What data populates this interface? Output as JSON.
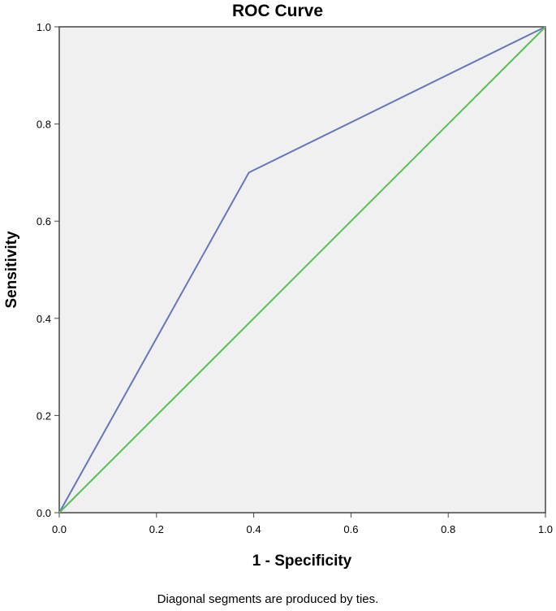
{
  "chart_data": {
    "type": "line",
    "title": "ROC Curve",
    "xlabel": "1 - Specificity",
    "ylabel": "Sensitivity",
    "xlim": [
      0,
      1
    ],
    "ylim": [
      0,
      1
    ],
    "xticks": [
      0.0,
      0.2,
      0.4,
      0.6,
      0.8,
      1.0
    ],
    "yticks": [
      0.0,
      0.2,
      0.4,
      0.6,
      0.8,
      1.0
    ],
    "xtick_labels": [
      "0.0",
      "0.2",
      "0.4",
      "0.6",
      "0.8",
      "1.0"
    ],
    "ytick_labels": [
      "0.0",
      "0.2",
      "0.4",
      "0.6",
      "0.8",
      "1.0"
    ],
    "grid": false,
    "legend": "none",
    "footnote": "Diagonal segments are produced by ties.",
    "series": [
      {
        "points": [
          [
            0.0,
            0.0
          ],
          [
            0.39,
            0.7
          ],
          [
            1.0,
            1.0
          ]
        ],
        "color": "#6677b8"
      },
      {
        "points": [
          [
            0.0,
            0.0
          ],
          [
            1.0,
            1.0
          ]
        ],
        "color": "#56bf56"
      }
    ],
    "plot_background": "#f0f0f0",
    "frame_color": "#444444"
  }
}
